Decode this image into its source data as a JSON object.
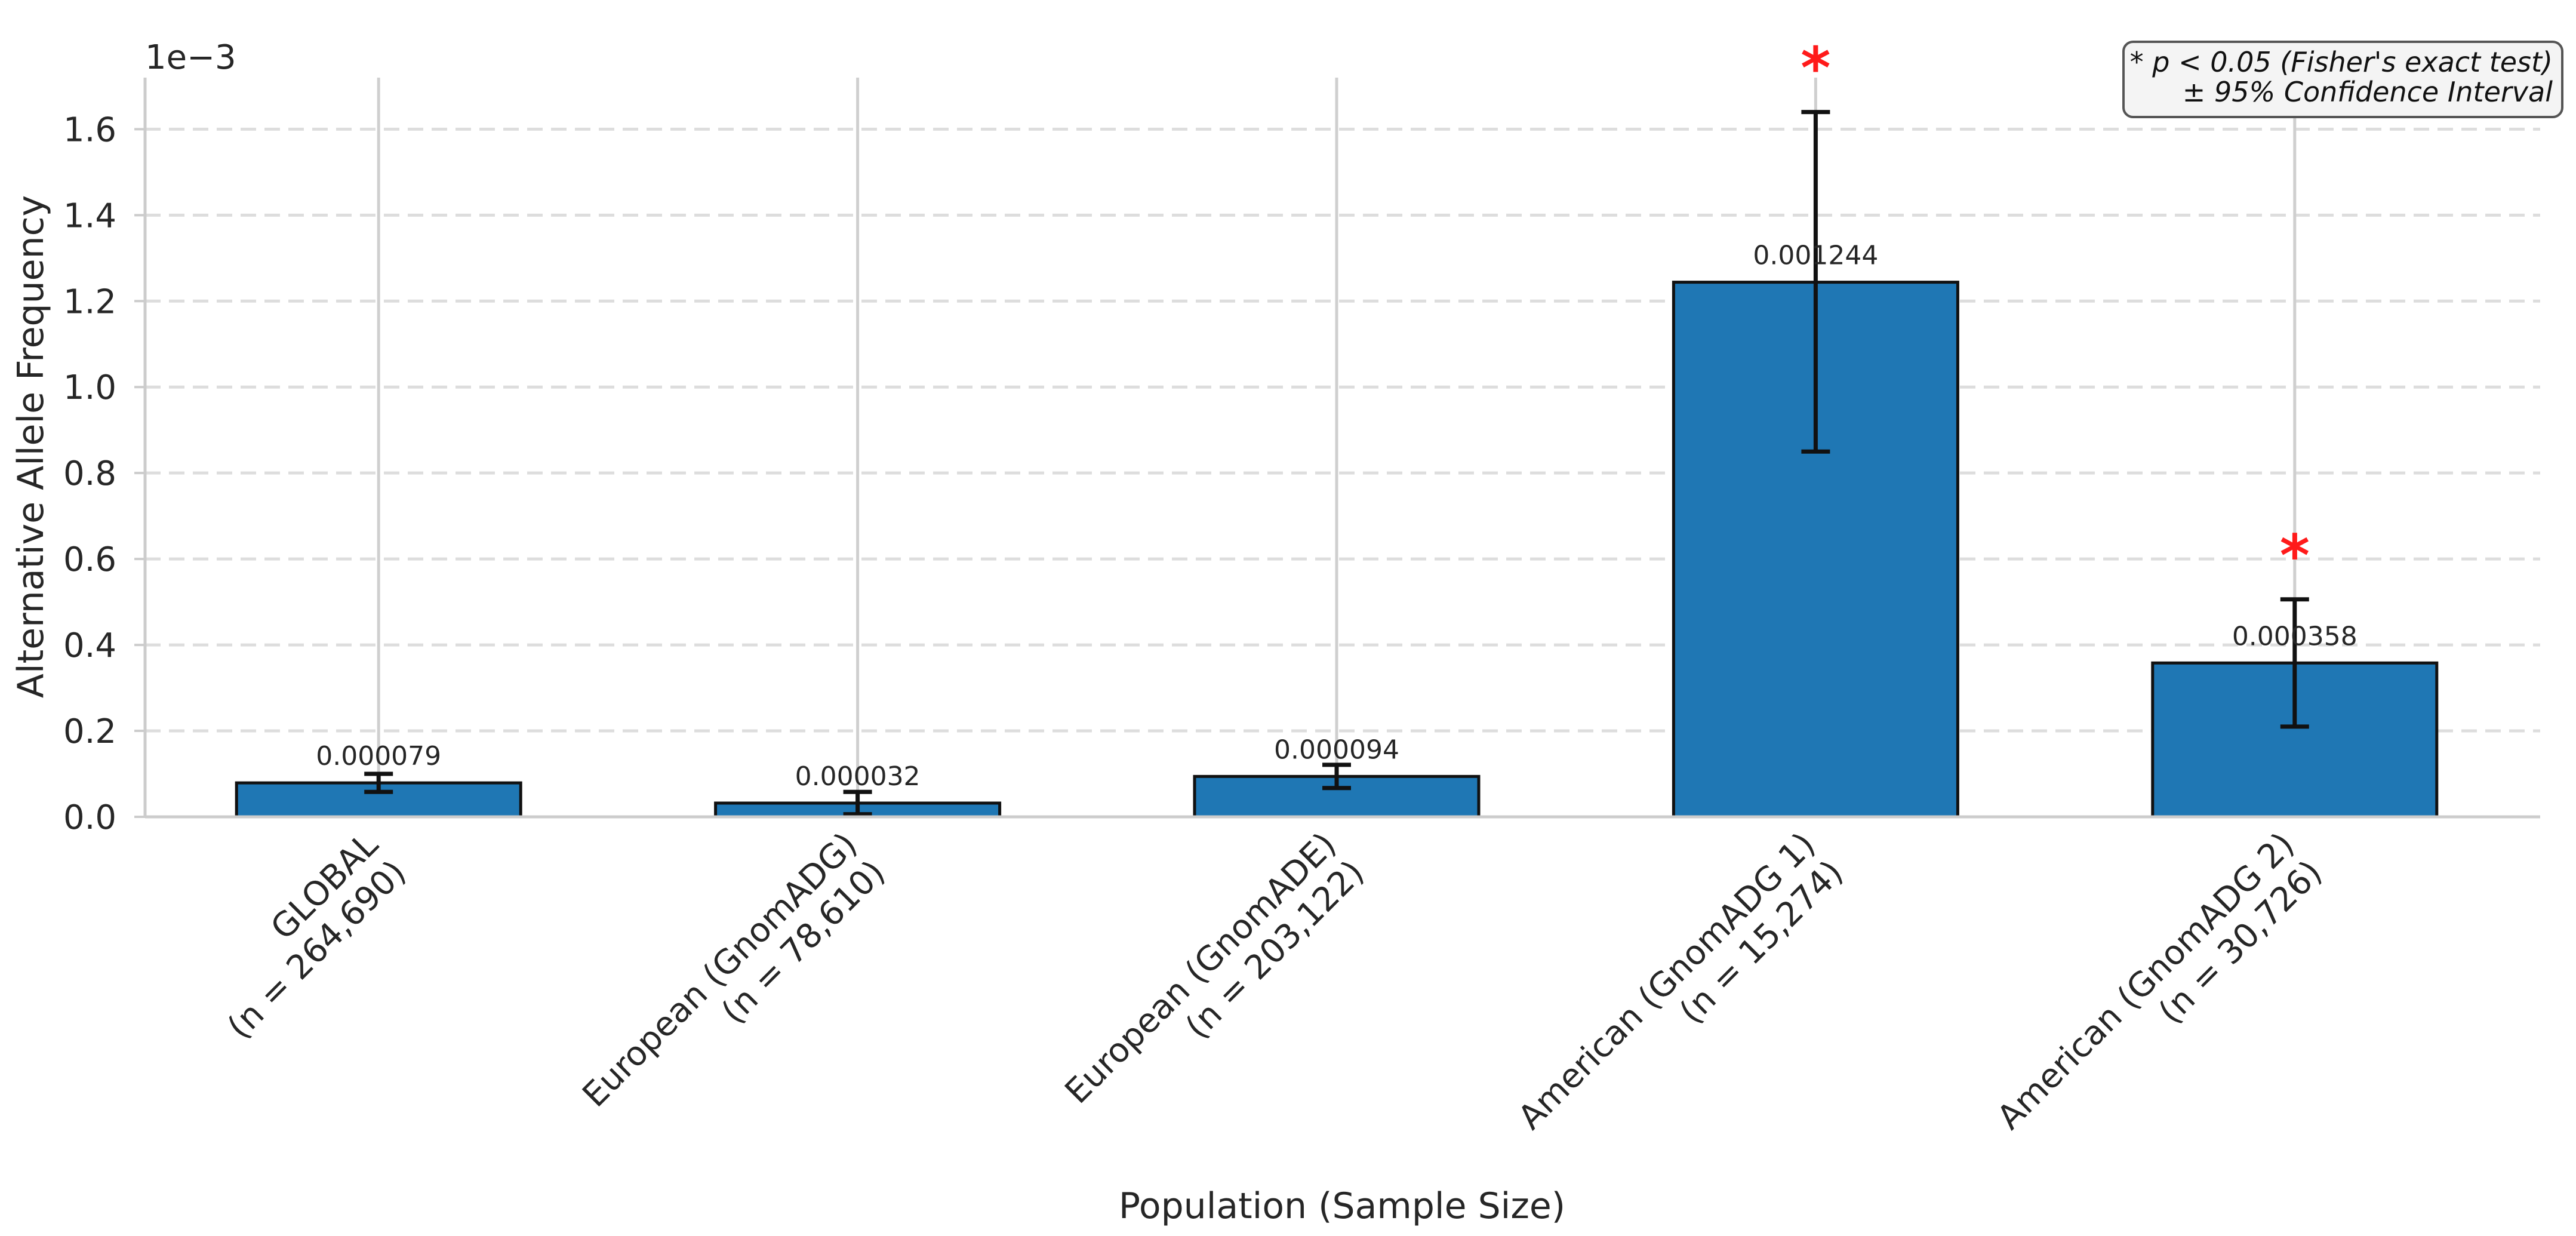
{
  "chart_data": {
    "type": "bar",
    "title": "",
    "xlabel": "Population (Sample Size)",
    "ylabel": "Alternative Allele Frequency",
    "scale_label": "1e−3",
    "scale_factor": 1000,
    "ylim": [
      0,
      1.72
    ],
    "yticks": [
      0.0,
      0.2,
      0.4,
      0.6,
      0.8,
      1.0,
      1.2,
      1.4,
      1.6
    ],
    "ytick_labels": [
      "0.0",
      "0.2",
      "0.4",
      "0.6",
      "0.8",
      "1.0",
      "1.2",
      "1.4",
      "1.6"
    ],
    "grid": "y-dashed",
    "categories": [
      {
        "line1": "GLOBAL",
        "line2": "(n = 264,690)"
      },
      {
        "line1": "European (GnomADG)",
        "line2": "(n = 78,610)"
      },
      {
        "line1": "European (GnomADE)",
        "line2": "(n = 203,122)"
      },
      {
        "line1": "American (GnomADG 1)",
        "line2": "(n = 15,274)"
      },
      {
        "line1": "American (GnomADG 2)",
        "line2": "(n = 30,726)"
      }
    ],
    "values": [
      7.9e-05,
      3.2e-05,
      9.4e-05,
      0.001244,
      0.000358
    ],
    "value_labels": [
      "0.000079",
      "0.000032",
      "0.000094",
      "0.001244",
      "0.000358"
    ],
    "ci_lower": [
      5.8e-05,
      6e-06,
      6.7e-05,
      0.00085,
      0.00021
    ],
    "ci_upper": [
      0.0001,
      5.8e-05,
      0.000121,
      0.00164,
      0.000506
    ],
    "significant": [
      false,
      false,
      false,
      true,
      true
    ],
    "significance_marker": "*",
    "legend_position": "top-right",
    "legend_lines": [
      "* p < 0.05 (Fisher's exact test)",
      "± 95% Confidence Interval"
    ],
    "colors": {
      "bar": "#1f77b4",
      "bar_edge": "#111111",
      "error_bar": "#111111",
      "star": "#ff1a1a",
      "grid": "#dddddd",
      "spine": "#cccccc"
    }
  }
}
